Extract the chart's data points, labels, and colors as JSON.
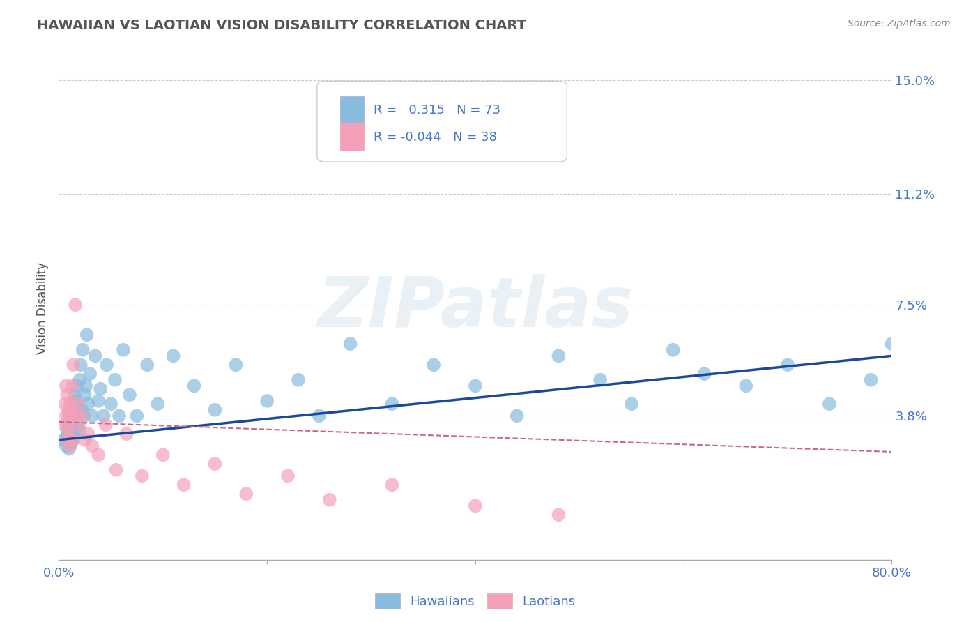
{
  "title": "HAWAIIAN VS LAOTIAN VISION DISABILITY CORRELATION CHART",
  "source": "Source: ZipAtlas.com",
  "ylabel": "Vision Disability",
  "x_min": 0.0,
  "x_max": 0.8,
  "y_min": -0.01,
  "y_max": 0.158,
  "yticks": [
    0.038,
    0.075,
    0.112,
    0.15
  ],
  "ytick_labels": [
    "3.8%",
    "7.5%",
    "11.2%",
    "15.0%"
  ],
  "xticks": [
    0.0,
    0.2,
    0.4,
    0.6,
    0.8
  ],
  "xtick_labels": [
    "0.0%",
    "",
    "",
    "",
    "80.0%"
  ],
  "hawaiian_R": 0.315,
  "hawaiian_N": 73,
  "laotian_R": -0.044,
  "laotian_N": 38,
  "hawaiian_color": "#88bbdd",
  "laotian_color": "#f4a0b8",
  "hawaiian_line_color": "#1a4a99",
  "laotian_line_color": "#cc6688",
  "watermark": "ZIPatlas",
  "background_color": "#ffffff",
  "grid_color": "#cccccc",
  "title_color": "#555555",
  "axis_label_color": "#4477cc",
  "hawaiian_scatter_x": [
    0.005,
    0.007,
    0.008,
    0.008,
    0.009,
    0.01,
    0.01,
    0.011,
    0.011,
    0.012,
    0.012,
    0.013,
    0.013,
    0.014,
    0.014,
    0.014,
    0.015,
    0.015,
    0.015,
    0.016,
    0.016,
    0.017,
    0.017,
    0.018,
    0.018,
    0.019,
    0.02,
    0.02,
    0.021,
    0.022,
    0.023,
    0.024,
    0.025,
    0.026,
    0.027,
    0.028,
    0.03,
    0.032,
    0.035,
    0.038,
    0.04,
    0.043,
    0.046,
    0.05,
    0.054,
    0.058,
    0.062,
    0.068,
    0.075,
    0.085,
    0.095,
    0.11,
    0.13,
    0.15,
    0.17,
    0.2,
    0.23,
    0.25,
    0.28,
    0.32,
    0.36,
    0.4,
    0.44,
    0.48,
    0.52,
    0.55,
    0.59,
    0.62,
    0.66,
    0.7,
    0.74,
    0.78,
    0.8
  ],
  "hawaiian_scatter_y": [
    0.03,
    0.028,
    0.033,
    0.031,
    0.035,
    0.027,
    0.036,
    0.032,
    0.038,
    0.029,
    0.034,
    0.04,
    0.031,
    0.042,
    0.03,
    0.037,
    0.045,
    0.032,
    0.038,
    0.043,
    0.036,
    0.041,
    0.048,
    0.035,
    0.042,
    0.038,
    0.05,
    0.033,
    0.055,
    0.04,
    0.06,
    0.038,
    0.045,
    0.048,
    0.065,
    0.042,
    0.052,
    0.038,
    0.058,
    0.043,
    0.047,
    0.038,
    0.055,
    0.042,
    0.05,
    0.038,
    0.06,
    0.045,
    0.038,
    0.055,
    0.042,
    0.058,
    0.048,
    0.04,
    0.055,
    0.043,
    0.05,
    0.038,
    0.062,
    0.042,
    0.055,
    0.048,
    0.038,
    0.058,
    0.05,
    0.042,
    0.06,
    0.052,
    0.048,
    0.055,
    0.042,
    0.05,
    0.062
  ],
  "laotian_scatter_x": [
    0.005,
    0.006,
    0.007,
    0.007,
    0.008,
    0.008,
    0.009,
    0.009,
    0.01,
    0.01,
    0.011,
    0.011,
    0.012,
    0.013,
    0.013,
    0.014,
    0.015,
    0.016,
    0.018,
    0.02,
    0.022,
    0.025,
    0.028,
    0.032,
    0.038,
    0.045,
    0.055,
    0.065,
    0.08,
    0.1,
    0.12,
    0.15,
    0.18,
    0.22,
    0.26,
    0.32,
    0.4,
    0.48
  ],
  "laotian_scatter_y": [
    0.035,
    0.042,
    0.038,
    0.048,
    0.03,
    0.045,
    0.035,
    0.04,
    0.032,
    0.038,
    0.042,
    0.028,
    0.04,
    0.048,
    0.03,
    0.055,
    0.038,
    0.075,
    0.042,
    0.035,
    0.038,
    0.03,
    0.032,
    0.028,
    0.025,
    0.035,
    0.02,
    0.032,
    0.018,
    0.025,
    0.015,
    0.022,
    0.012,
    0.018,
    0.01,
    0.015,
    0.008,
    0.005
  ],
  "hawaiian_line_x0": 0.0,
  "hawaiian_line_x1": 0.8,
  "hawaiian_line_y0": 0.03,
  "hawaiian_line_y1": 0.058,
  "laotian_line_x0": 0.0,
  "laotian_line_x1": 0.8,
  "laotian_line_y0": 0.036,
  "laotian_line_y1": 0.026
}
